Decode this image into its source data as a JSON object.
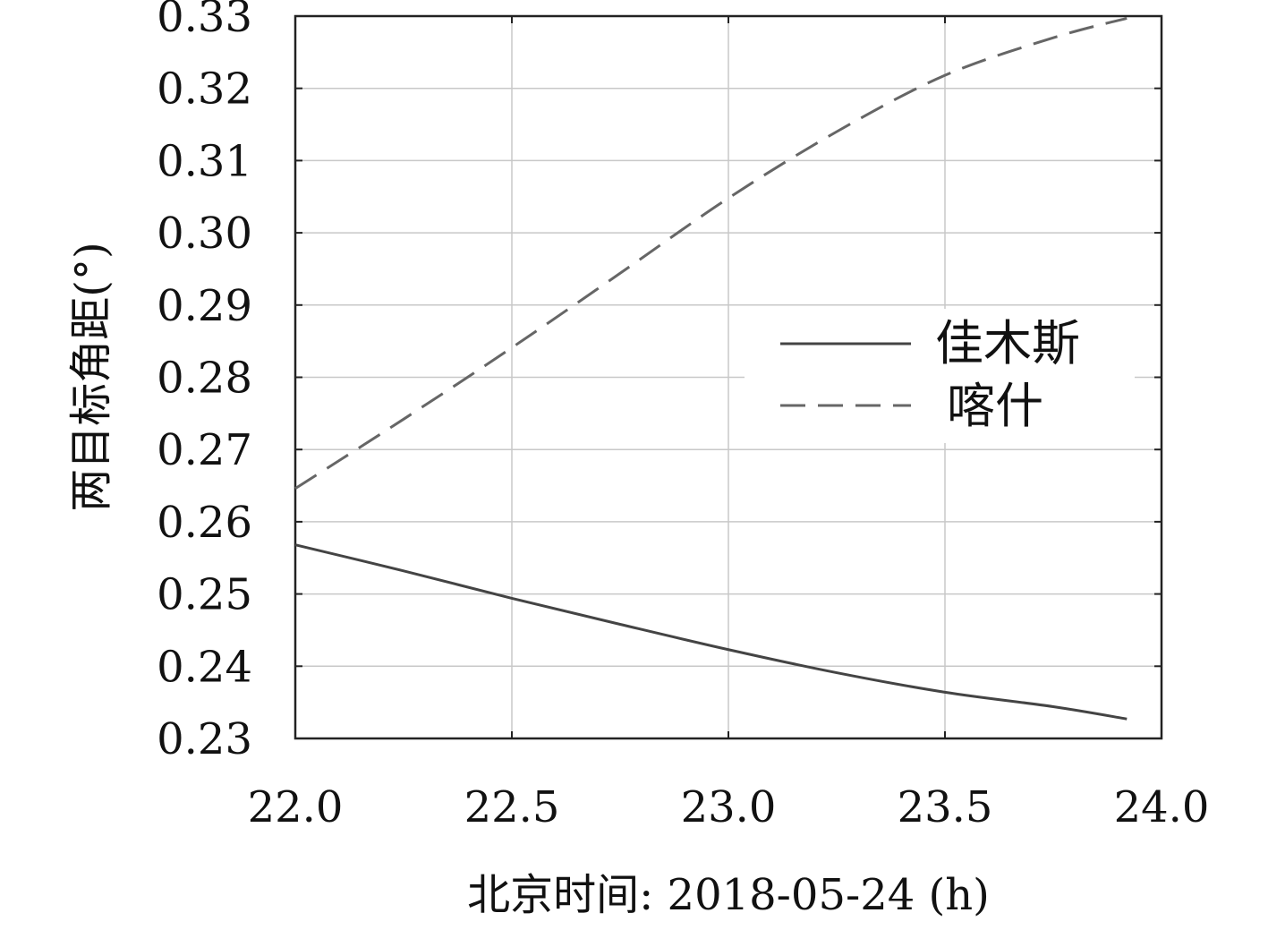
{
  "chart_data": {
    "type": "line",
    "title": "",
    "xlabel": "北京时间: 2018-05-24 (h)",
    "ylabel": "两目标角距(°)",
    "xlim": [
      22.0,
      24.0
    ],
    "ylim": [
      0.23,
      0.33
    ],
    "x_ticks": [
      "22.0",
      "22.5",
      "23.0",
      "23.5",
      "24.0"
    ],
    "y_ticks": [
      "0.23",
      "0.24",
      "0.25",
      "0.26",
      "0.27",
      "0.28",
      "0.29",
      "0.30",
      "0.31",
      "0.32",
      "0.33"
    ],
    "grid": true,
    "legend_position": "center-right",
    "series": [
      {
        "name": "佳木斯",
        "style": "solid",
        "color": "#444444",
        "x": [
          22.0,
          22.25,
          22.5,
          22.75,
          23.0,
          23.25,
          23.5,
          23.75,
          23.92
        ],
        "y": [
          0.2568,
          0.2532,
          0.2494,
          0.2458,
          0.2423,
          0.2391,
          0.2364,
          0.2344,
          0.2327
        ]
      },
      {
        "name": "喀什",
        "style": "dashed",
        "color": "#666666",
        "x": [
          22.0,
          22.25,
          22.5,
          22.75,
          23.0,
          23.25,
          23.5,
          23.75,
          23.92
        ],
        "y": [
          0.2646,
          0.2742,
          0.2841,
          0.2944,
          0.3048,
          0.314,
          0.3218,
          0.327,
          0.3297
        ]
      }
    ]
  }
}
